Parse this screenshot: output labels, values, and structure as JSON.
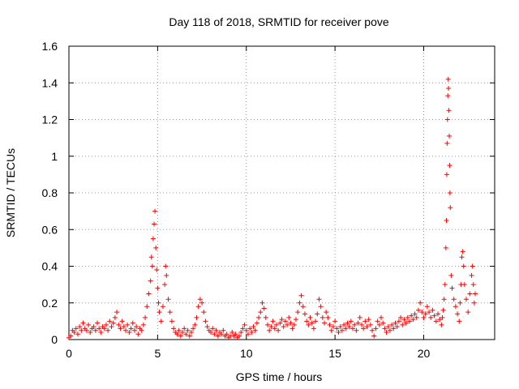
{
  "chart_data": {
    "type": "scatter",
    "title": "Day 118 of 2018, SRMTID for receiver pove",
    "xlabel": "GPS time / hours",
    "ylabel": "SRMTID / TECUs",
    "xlim": [
      0,
      24
    ],
    "ylim": [
      0,
      1.6
    ],
    "x_ticks": [
      0,
      5,
      10,
      15,
      20
    ],
    "y_ticks": [
      0,
      0.2,
      0.4,
      0.6,
      0.8,
      1,
      1.2,
      1.4,
      1.6
    ],
    "x_tick_labels": [
      "0",
      "5",
      "10",
      "15",
      "20"
    ],
    "y_tick_labels": [
      "0",
      "0.2",
      "0.4",
      "0.6",
      "0.8",
      "1",
      "1.2",
      "1.4",
      "1.6"
    ],
    "grid": true,
    "marker": "+",
    "marker_color": "#ff0000",
    "series": [
      {
        "name": "SRMTID",
        "points_hours_tecu": [
          [
            0.0,
            0.01
          ],
          [
            0.1,
            0.02
          ],
          [
            0.2,
            0.05
          ],
          [
            0.3,
            0.04
          ],
          [
            0.4,
            0.06
          ],
          [
            0.5,
            0.03
          ],
          [
            0.6,
            0.07
          ],
          [
            0.7,
            0.05
          ],
          [
            0.8,
            0.09
          ],
          [
            0.9,
            0.06
          ],
          [
            1.0,
            0.05
          ],
          [
            1.1,
            0.08
          ],
          [
            1.2,
            0.04
          ],
          [
            1.3,
            0.06
          ],
          [
            1.4,
            0.07
          ],
          [
            1.5,
            0.05
          ],
          [
            1.6,
            0.09
          ],
          [
            1.7,
            0.06
          ],
          [
            1.8,
            0.04
          ],
          [
            1.9,
            0.07
          ],
          [
            2.0,
            0.06
          ],
          [
            2.1,
            0.08
          ],
          [
            2.2,
            0.05
          ],
          [
            2.3,
            0.1
          ],
          [
            2.4,
            0.07
          ],
          [
            2.5,
            0.09
          ],
          [
            2.6,
            0.12
          ],
          [
            2.7,
            0.15
          ],
          [
            2.8,
            0.08
          ],
          [
            2.9,
            0.06
          ],
          [
            3.0,
            0.1
          ],
          [
            3.1,
            0.07
          ],
          [
            3.2,
            0.05
          ],
          [
            3.3,
            0.08
          ],
          [
            3.4,
            0.04
          ],
          [
            3.5,
            0.06
          ],
          [
            3.6,
            0.09
          ],
          [
            3.7,
            0.05
          ],
          [
            3.8,
            0.07
          ],
          [
            3.9,
            0.03
          ],
          [
            4.0,
            0.06
          ],
          [
            4.1,
            0.05
          ],
          [
            4.2,
            0.08
          ],
          [
            4.3,
            0.12
          ],
          [
            4.4,
            0.18
          ],
          [
            4.5,
            0.25
          ],
          [
            4.6,
            0.32
          ],
          [
            4.65,
            0.45
          ],
          [
            4.7,
            0.4
          ],
          [
            4.75,
            0.55
          ],
          [
            4.8,
            0.63
          ],
          [
            4.85,
            0.7
          ],
          [
            4.9,
            0.5
          ],
          [
            4.95,
            0.38
          ],
          [
            5.0,
            0.28
          ],
          [
            5.05,
            0.2
          ],
          [
            5.1,
            0.15
          ],
          [
            5.2,
            0.1
          ],
          [
            5.3,
            0.18
          ],
          [
            5.4,
            0.3
          ],
          [
            5.45,
            0.4
          ],
          [
            5.5,
            0.35
          ],
          [
            5.6,
            0.22
          ],
          [
            5.7,
            0.15
          ],
          [
            5.8,
            0.1
          ],
          [
            5.9,
            0.06
          ],
          [
            6.0,
            0.04
          ],
          [
            6.1,
            0.03
          ],
          [
            6.2,
            0.05
          ],
          [
            6.3,
            0.02
          ],
          [
            6.4,
            0.04
          ],
          [
            6.5,
            0.06
          ],
          [
            6.6,
            0.03
          ],
          [
            6.7,
            0.05
          ],
          [
            6.8,
            0.02
          ],
          [
            6.9,
            0.04
          ],
          [
            7.0,
            0.06
          ],
          [
            7.1,
            0.08
          ],
          [
            7.2,
            0.12
          ],
          [
            7.3,
            0.18
          ],
          [
            7.4,
            0.22
          ],
          [
            7.5,
            0.2
          ],
          [
            7.6,
            0.15
          ],
          [
            7.7,
            0.1
          ],
          [
            7.8,
            0.07
          ],
          [
            7.9,
            0.05
          ],
          [
            8.0,
            0.04
          ],
          [
            8.1,
            0.06
          ],
          [
            8.2,
            0.03
          ],
          [
            8.3,
            0.05
          ],
          [
            8.4,
            0.02
          ],
          [
            8.5,
            0.04
          ],
          [
            8.6,
            0.03
          ],
          [
            8.7,
            0.05
          ],
          [
            8.8,
            0.02
          ],
          [
            8.9,
            0.03
          ],
          [
            9.0,
            0.01
          ],
          [
            9.1,
            0.02
          ],
          [
            9.2,
            0.04
          ],
          [
            9.3,
            0.02
          ],
          [
            9.4,
            0.03
          ],
          [
            9.5,
            0.01
          ],
          [
            9.6,
            0.02
          ],
          [
            9.7,
            0.04
          ],
          [
            9.8,
            0.06
          ],
          [
            9.9,
            0.08
          ],
          [
            10.0,
            0.05
          ],
          [
            10.1,
            0.03
          ],
          [
            10.2,
            0.06
          ],
          [
            10.3,
            0.04
          ],
          [
            10.4,
            0.07
          ],
          [
            10.5,
            0.05
          ],
          [
            10.6,
            0.09
          ],
          [
            10.7,
            0.12
          ],
          [
            10.8,
            0.15
          ],
          [
            10.9,
            0.2
          ],
          [
            11.0,
            0.17
          ],
          [
            11.1,
            0.12
          ],
          [
            11.2,
            0.08
          ],
          [
            11.3,
            0.05
          ],
          [
            11.4,
            0.07
          ],
          [
            11.5,
            0.1
          ],
          [
            11.6,
            0.06
          ],
          [
            11.7,
            0.08
          ],
          [
            11.8,
            0.05
          ],
          [
            11.9,
            0.09
          ],
          [
            12.0,
            0.11
          ],
          [
            12.1,
            0.07
          ],
          [
            12.2,
            0.1
          ],
          [
            12.3,
            0.08
          ],
          [
            12.4,
            0.12
          ],
          [
            12.5,
            0.09
          ],
          [
            12.6,
            0.06
          ],
          [
            12.7,
            0.08
          ],
          [
            12.8,
            0.11
          ],
          [
            12.9,
            0.15
          ],
          [
            13.0,
            0.2
          ],
          [
            13.1,
            0.24
          ],
          [
            13.2,
            0.18
          ],
          [
            13.3,
            0.14
          ],
          [
            13.4,
            0.1
          ],
          [
            13.5,
            0.08
          ],
          [
            13.6,
            0.12
          ],
          [
            13.7,
            0.09
          ],
          [
            13.8,
            0.06
          ],
          [
            13.9,
            0.1
          ],
          [
            14.0,
            0.14
          ],
          [
            14.1,
            0.22
          ],
          [
            14.2,
            0.18
          ],
          [
            14.3,
            0.12
          ],
          [
            14.4,
            0.09
          ],
          [
            14.5,
            0.15
          ],
          [
            14.6,
            0.12
          ],
          [
            14.7,
            0.08
          ],
          [
            14.8,
            0.05
          ],
          [
            14.9,
            0.07
          ],
          [
            15.0,
            0.1
          ],
          [
            15.1,
            0.06
          ],
          [
            15.2,
            0.04
          ],
          [
            15.3,
            0.07
          ],
          [
            15.4,
            0.05
          ],
          [
            15.5,
            0.08
          ],
          [
            15.6,
            0.06
          ],
          [
            15.7,
            0.09
          ],
          [
            15.8,
            0.07
          ],
          [
            15.9,
            0.1
          ],
          [
            16.0,
            0.06
          ],
          [
            16.1,
            0.08
          ],
          [
            16.2,
            0.05
          ],
          [
            16.3,
            0.09
          ],
          [
            16.4,
            0.12
          ],
          [
            16.5,
            0.08
          ],
          [
            16.6,
            0.06
          ],
          [
            16.7,
            0.1
          ],
          [
            16.8,
            0.07
          ],
          [
            16.9,
            0.11
          ],
          [
            17.0,
            0.08
          ],
          [
            17.1,
            0.05
          ],
          [
            17.2,
            0.02
          ],
          [
            17.3,
            0.06
          ],
          [
            17.4,
            0.1
          ],
          [
            17.5,
            0.08
          ],
          [
            17.6,
            0.12
          ],
          [
            17.7,
            0.09
          ],
          [
            17.8,
            0.06
          ],
          [
            17.9,
            0.04
          ],
          [
            18.0,
            0.07
          ],
          [
            18.1,
            0.05
          ],
          [
            18.2,
            0.08
          ],
          [
            18.3,
            0.06
          ],
          [
            18.4,
            0.09
          ],
          [
            18.5,
            0.07
          ],
          [
            18.6,
            0.1
          ],
          [
            18.7,
            0.12
          ],
          [
            18.8,
            0.08
          ],
          [
            18.9,
            0.11
          ],
          [
            19.0,
            0.09
          ],
          [
            19.1,
            0.12
          ],
          [
            19.2,
            0.1
          ],
          [
            19.3,
            0.13
          ],
          [
            19.4,
            0.11
          ],
          [
            19.5,
            0.14
          ],
          [
            19.6,
            0.12
          ],
          [
            19.7,
            0.16
          ],
          [
            19.8,
            0.2
          ],
          [
            19.9,
            0.15
          ],
          [
            20.0,
            0.12
          ],
          [
            20.1,
            0.14
          ],
          [
            20.2,
            0.18
          ],
          [
            20.3,
            0.15
          ],
          [
            20.4,
            0.12
          ],
          [
            20.5,
            0.16
          ],
          [
            20.6,
            0.13
          ],
          [
            20.7,
            0.1
          ],
          [
            20.8,
            0.14
          ],
          [
            20.9,
            0.11
          ],
          [
            21.0,
            0.08
          ],
          [
            21.05,
            0.12
          ],
          [
            21.1,
            0.16
          ],
          [
            21.15,
            0.22
          ],
          [
            21.2,
            0.3
          ],
          [
            21.25,
            0.5
          ],
          [
            21.28,
            0.65
          ],
          [
            21.3,
            0.9
          ],
          [
            21.32,
            1.07
          ],
          [
            21.34,
            1.2
          ],
          [
            21.36,
            1.33
          ],
          [
            21.38,
            1.42
          ],
          [
            21.4,
            1.37
          ],
          [
            21.42,
            1.25
          ],
          [
            21.44,
            1.11
          ],
          [
            21.46,
            0.95
          ],
          [
            21.48,
            0.8
          ],
          [
            21.5,
            0.72
          ],
          [
            21.55,
            0.35
          ],
          [
            21.6,
            0.28
          ],
          [
            21.7,
            0.22
          ],
          [
            21.8,
            0.18
          ],
          [
            21.9,
            0.14
          ],
          [
            22.0,
            0.1
          ],
          [
            22.05,
            0.2
          ],
          [
            22.1,
            0.3
          ],
          [
            22.15,
            0.45
          ],
          [
            22.2,
            0.48
          ],
          [
            22.25,
            0.4
          ],
          [
            22.3,
            0.3
          ],
          [
            22.4,
            0.22
          ],
          [
            22.5,
            0.15
          ],
          [
            22.6,
            0.25
          ],
          [
            22.7,
            0.35
          ],
          [
            22.75,
            0.4
          ],
          [
            22.8,
            0.3
          ],
          [
            22.85,
            0.2
          ],
          [
            22.9,
            0.25
          ]
        ]
      }
    ]
  }
}
